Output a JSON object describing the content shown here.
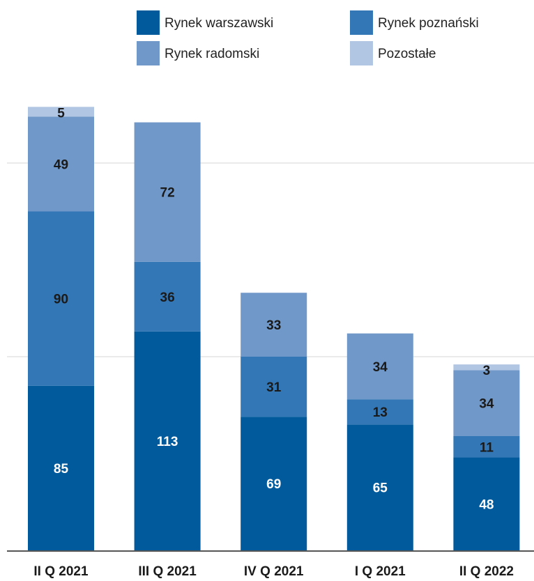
{
  "chart_data": {
    "type": "bar",
    "stacked": true,
    "categories": [
      "II Q 2021",
      "III Q 2021",
      "IV Q 2021",
      "I Q 2021",
      "II Q 2022"
    ],
    "series": [
      {
        "name": "Rynek warszawski",
        "color": "#005a9c",
        "label_color": "#ffffff",
        "values": [
          85,
          113,
          69,
          65,
          48
        ]
      },
      {
        "name": "Rynek poznański",
        "color": "#3377b6",
        "label_color": "#1a1a1a",
        "values": [
          90,
          36,
          31,
          13,
          11
        ]
      },
      {
        "name": "Rynek radomski",
        "color": "#7098c8",
        "label_color": "#1a1a1a",
        "values": [
          49,
          72,
          33,
          34,
          34
        ]
      },
      {
        "name": "Pozostałe",
        "color": "#b1c6e3",
        "label_color": "#1a1a1a",
        "values": [
          5,
          0,
          0,
          0,
          3
        ]
      }
    ],
    "title": "",
    "xlabel": "",
    "ylabel": "",
    "ylim": [
      0,
      230
    ],
    "y_gridlines": [
      100,
      200
    ],
    "y_tick_labels_shown": false,
    "grid": true,
    "legend_position": "top"
  }
}
